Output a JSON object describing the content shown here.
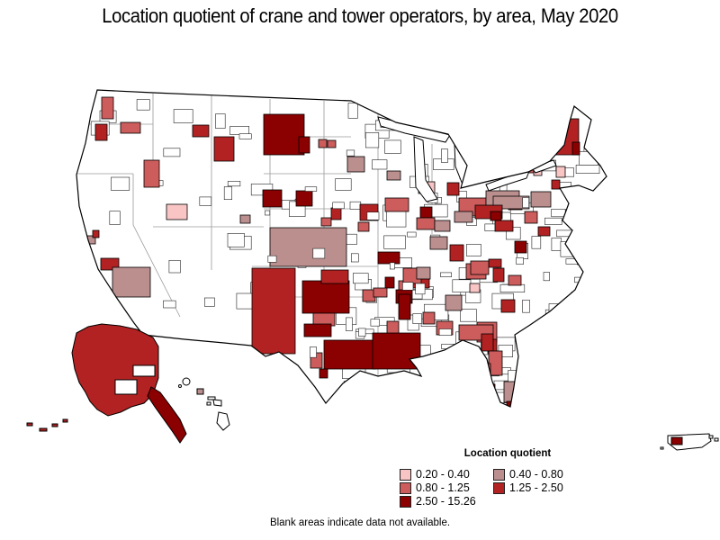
{
  "title": "Location quotient of crane and tower operators, by area, May 2020",
  "legend": {
    "title": "Location quotient",
    "items": [
      {
        "label": "0.20 - 0.40",
        "color": "#F8C4C4"
      },
      {
        "label": "0.40 - 0.80",
        "color": "#BC8F8F"
      },
      {
        "label": "0.80 - 1.25",
        "color": "#CD5C5C"
      },
      {
        "label": "1.25 - 2.50",
        "color": "#B22222"
      },
      {
        "label": "2.50 - 15.26",
        "color": "#8B0000"
      }
    ]
  },
  "note": "Blank areas indicate data not available.",
  "map": {
    "blank_fill": "#ffffff",
    "border_color": "#000000",
    "state_line_color": "#9a9a9a",
    "regions": {
      "alaska_mainland": 4,
      "alaska_panhandle": 5,
      "aleutian_islands": 4,
      "oahu": 2,
      "puerto_rico_area": 5
    },
    "patches": [
      [
        113,
        108,
        13,
        24,
        3
      ],
      [
        106,
        138,
        13,
        18,
        4
      ],
      [
        134,
        136,
        22,
        12,
        3
      ],
      [
        214,
        139,
        18,
        13,
        4
      ],
      [
        160,
        178,
        17,
        30,
        3
      ],
      [
        238,
        152,
        22,
        27,
        4
      ],
      [
        293,
        127,
        45,
        45,
        5
      ],
      [
        332,
        152,
        12,
        18,
        5
      ],
      [
        354,
        155,
        9,
        9,
        3
      ],
      [
        364,
        156,
        9,
        8,
        3
      ],
      [
        386,
        174,
        19,
        17,
        2
      ],
      [
        292,
        211,
        21,
        19,
        5
      ],
      [
        329,
        212,
        18,
        17,
        5
      ],
      [
        368,
        231,
        11,
        13,
        4
      ],
      [
        357,
        242,
        11,
        9,
        3
      ],
      [
        185,
        227,
        23,
        17,
        1
      ],
      [
        267,
        239,
        11,
        9,
        2
      ],
      [
        97,
        262,
        9,
        9,
        2
      ],
      [
        103,
        256,
        7,
        8,
        4
      ],
      [
        112,
        287,
        20,
        13,
        4
      ],
      [
        125,
        297,
        42,
        33,
        2
      ],
      [
        300,
        253,
        85,
        43,
        2
      ],
      [
        400,
        227,
        20,
        18,
        4
      ],
      [
        428,
        220,
        26,
        15,
        3
      ],
      [
        430,
        190,
        15,
        10,
        2
      ],
      [
        420,
        280,
        24,
        13,
        5
      ],
      [
        398,
        247,
        12,
        10,
        3
      ],
      [
        280,
        298,
        48,
        95,
        4
      ],
      [
        336,
        312,
        52,
        36,
        5
      ],
      [
        348,
        348,
        24,
        14,
        3
      ],
      [
        338,
        360,
        30,
        14,
        5
      ],
      [
        357,
        300,
        30,
        15,
        4
      ],
      [
        403,
        322,
        14,
        13,
        3
      ],
      [
        428,
        308,
        10,
        12,
        5
      ],
      [
        443,
        312,
        14,
        11,
        3
      ],
      [
        455,
        298,
        12,
        17,
        5
      ],
      [
        360,
        378,
        58,
        32,
        5
      ],
      [
        414,
        370,
        53,
        40,
        5
      ],
      [
        345,
        392,
        13,
        17,
        3
      ],
      [
        355,
        410,
        9,
        10,
        5
      ],
      [
        465,
        202,
        18,
        13,
        1
      ],
      [
        497,
        203,
        13,
        14,
        4
      ],
      [
        467,
        230,
        13,
        12,
        5
      ],
      [
        463,
        242,
        20,
        13,
        3
      ],
      [
        483,
        245,
        17,
        12,
        2
      ],
      [
        510,
        220,
        30,
        20,
        3
      ],
      [
        540,
        212,
        37,
        18,
        2
      ],
      [
        565,
        222,
        15,
        11,
        4
      ],
      [
        500,
        272,
        15,
        18,
        4
      ],
      [
        478,
        263,
        19,
        14,
        2
      ],
      [
        572,
        268,
        13,
        13,
        5
      ],
      [
        452,
        303,
        25,
        17,
        4
      ],
      [
        440,
        322,
        18,
        15,
        5
      ],
      [
        415,
        320,
        15,
        10,
        3
      ],
      [
        518,
        293,
        22,
        17,
        3
      ],
      [
        543,
        288,
        14,
        9,
        4
      ],
      [
        617,
        132,
        26,
        40,
        4
      ],
      [
        636,
        158,
        8,
        14,
        5
      ],
      [
        572,
        162,
        23,
        30,
        3
      ],
      [
        593,
        183,
        9,
        12,
        1
      ],
      [
        618,
        185,
        10,
        12,
        1
      ],
      [
        613,
        200,
        9,
        10,
        4
      ],
      [
        590,
        213,
        22,
        17,
        2
      ],
      [
        548,
        218,
        40,
        14,
        2
      ],
      [
        528,
        228,
        30,
        15,
        4
      ],
      [
        545,
        235,
        12,
        10,
        5
      ],
      [
        505,
        235,
        20,
        12,
        2
      ],
      [
        583,
        235,
        14,
        13,
        3
      ],
      [
        550,
        245,
        20,
        12,
        4
      ],
      [
        598,
        252,
        13,
        10,
        4
      ],
      [
        448,
        298,
        20,
        17,
        3
      ],
      [
        463,
        297,
        15,
        13,
        2
      ],
      [
        523,
        290,
        20,
        15,
        3
      ],
      [
        548,
        298,
        12,
        15,
        4
      ],
      [
        557,
        333,
        15,
        14,
        4
      ],
      [
        495,
        328,
        18,
        17,
        2
      ],
      [
        522,
        315,
        11,
        10,
        1
      ],
      [
        565,
        306,
        14,
        11,
        3
      ],
      [
        485,
        357,
        18,
        15,
        3
      ],
      [
        530,
        358,
        22,
        22,
        3
      ],
      [
        542,
        377,
        10,
        16,
        4
      ],
      [
        443,
        327,
        13,
        28,
        5
      ],
      [
        470,
        347,
        13,
        13,
        3
      ],
      [
        430,
        357,
        13,
        13,
        3
      ],
      [
        510,
        361,
        38,
        17,
        3
      ],
      [
        535,
        371,
        13,
        19,
        4
      ],
      [
        543,
        390,
        15,
        27,
        3
      ],
      [
        533,
        404,
        12,
        14,
        3
      ],
      [
        541,
        427,
        9,
        10,
        5
      ],
      [
        560,
        424,
        12,
        23,
        2
      ],
      [
        563,
        446,
        9,
        8,
        5
      ]
    ]
  }
}
